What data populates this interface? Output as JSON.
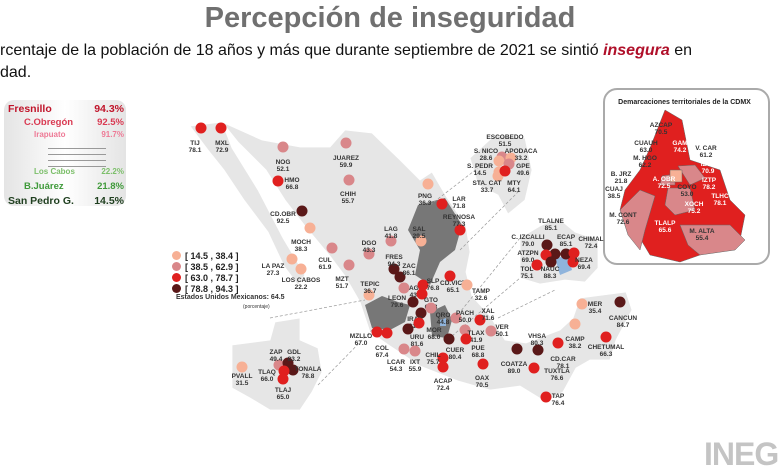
{
  "title": "Percepción de inseguridad",
  "subtitle": {
    "line1_pre": "rcentaje de la población de 18 años y más que durante septiembre de 2021 se sintió ",
    "line1_em": "insegura",
    "line1_post": " en",
    "line2": "dad."
  },
  "ranking": [
    {
      "name": "Fresnillo",
      "value": "94.3%",
      "color": "#c0142a"
    },
    {
      "name": "C.Obregón",
      "value": "92.5%",
      "color": "#d93a52"
    },
    {
      "name": "Irapuato",
      "value": "91.7%",
      "color": "#ee7a96"
    },
    {
      "name": "Los Cabos",
      "value": "22.2%",
      "color": "#7cbf6a"
    },
    {
      "name": "B.Juárez",
      "value": "21.8%",
      "color": "#3f9a3a"
    },
    {
      "name": "San Pedro G.",
      "value": "14.5%",
      "color": "#1f3f1f"
    }
  ],
  "legend": {
    "ranges": [
      "[ 14.5 , 38.4 ]",
      "[ 38.5 , 62.9 ]",
      "[ 63.0 , 78.7 ]",
      "[ 78.8 , 94.3 ]"
    ],
    "colors": [
      "#f7b095",
      "#d9878a",
      "#e0201f",
      "#5a1818"
    ]
  },
  "national": {
    "label": "Estados Unidos Mexicanos:",
    "value": "64.5",
    "unit": "(porcentaje)"
  },
  "cities": [
    {
      "name": "TIJ",
      "value": "78.1"
    },
    {
      "name": "MXL",
      "value": "72.9"
    },
    {
      "name": "NOG",
      "value": "52.1"
    },
    {
      "name": "JUAREZ",
      "value": "59.9"
    },
    {
      "name": "HMO",
      "value": "66.8"
    },
    {
      "name": "CHIH",
      "value": "55.7"
    },
    {
      "name": "CD.OBR",
      "value": "92.5"
    },
    {
      "name": "PNG",
      "value": "36.3"
    },
    {
      "name": "LAR",
      "value": "71.8"
    },
    {
      "name": "REYNOSA",
      "value": "77.3"
    },
    {
      "name": "MOCH",
      "value": "38.3"
    },
    {
      "name": "LAG",
      "value": "41.8"
    },
    {
      "name": "SAL",
      "value": "29.5"
    },
    {
      "name": "DGO",
      "value": "43.3"
    },
    {
      "name": "CUL",
      "value": "61.9"
    },
    {
      "name": "LA PAZ",
      "value": "27.3"
    },
    {
      "name": "LOS CABOS",
      "value": "22.2"
    },
    {
      "name": "MZT",
      "value": "51.7"
    },
    {
      "name": "FRES",
      "value": "94.3"
    },
    {
      "name": "ZAC",
      "value": "86.1"
    },
    {
      "name": "TEPIC",
      "value": "36.7"
    },
    {
      "name": "AGS",
      "value": "43.5"
    },
    {
      "name": "SLP",
      "value": "76.8"
    },
    {
      "name": "CD.VICT",
      "value": "65.1"
    },
    {
      "name": "TAMP",
      "value": "32.6"
    },
    {
      "name": "LEON",
      "value": "79.6"
    },
    {
      "name": "GTO",
      "value": "67.8"
    },
    {
      "name": "IRAP",
      "value": "91.7"
    },
    {
      "name": "QRO",
      "value": "44.8"
    },
    {
      "name": "MOR",
      "value": "68.0"
    },
    {
      "name": "PACH",
      "value": "50.0"
    },
    {
      "name": "XAL",
      "value": "71.6"
    },
    {
      "name": "VER",
      "value": "50.1"
    },
    {
      "name": "TLAX",
      "value": "41.9"
    },
    {
      "name": "PUE",
      "value": "68.8"
    },
    {
      "name": "URU",
      "value": "81.6"
    },
    {
      "name": "CUER",
      "value": "80.4"
    },
    {
      "name": "MZLLO",
      "value": "67.0"
    },
    {
      "name": "COL",
      "value": "67.4"
    },
    {
      "name": "LCAR",
      "value": "54.3"
    },
    {
      "name": "IXT",
      "value": "55.9"
    },
    {
      "name": "CHIL",
      "value": "75.7"
    },
    {
      "name": "ACAP",
      "value": "72.4"
    },
    {
      "name": "OAX",
      "value": "70.5"
    },
    {
      "name": "COATZA",
      "value": "89.0"
    },
    {
      "name": "VHSA",
      "value": "80.3"
    },
    {
      "name": "CD.CAR",
      "value": "78.1"
    },
    {
      "name": "TUXTLA",
      "value": "76.6"
    },
    {
      "name": "TAP",
      "value": "76.4"
    },
    {
      "name": "CAMP",
      "value": "38.2"
    },
    {
      "name": "MER",
      "value": "35.4"
    },
    {
      "name": "CANCUN",
      "value": "84.7"
    },
    {
      "name": "CHETUMAL",
      "value": "66.3"
    },
    {
      "name": "ZAP",
      "value": "49.4"
    },
    {
      "name": "GDL",
      "value": "83.2"
    },
    {
      "name": "TONALA",
      "value": "78.8"
    },
    {
      "name": "TLAQ",
      "value": "66.0"
    },
    {
      "name": "TLAJ",
      "value": "65.0"
    },
    {
      "name": "PVALL",
      "value": "31.5"
    },
    {
      "name": "ESCOBEDO",
      "value": "51.5"
    },
    {
      "name": "S. NICO",
      "value": "28.6"
    },
    {
      "name": "APODACA",
      "value": "33.2"
    },
    {
      "name": "GPE",
      "value": "49.6"
    },
    {
      "name": "S. PEDR",
      "value": "14.5"
    },
    {
      "name": "STA. CAT",
      "value": "33.7"
    },
    {
      "name": "MTY",
      "value": "64.1"
    },
    {
      "name": "TLALNE",
      "value": "85.1"
    },
    {
      "name": "C. IZCALLI",
      "value": "79.0"
    },
    {
      "name": "ECAP",
      "value": "85.1"
    },
    {
      "name": "CHIMAL",
      "value": "72.4"
    },
    {
      "name": "ATZPN",
      "value": "69.0"
    },
    {
      "name": "NEZA",
      "value": "69.4"
    },
    {
      "name": "TOL",
      "value": "75.1"
    },
    {
      "name": "NAUC",
      "value": "88.3"
    }
  ],
  "cdmx": {
    "title": "Demarcaciones territoriales de la CDMX",
    "districts": [
      {
        "name": "AZCAP",
        "value": "70.5"
      },
      {
        "name": "GAM",
        "value": "74.2"
      },
      {
        "name": "CUAUH",
        "value": "63.0"
      },
      {
        "name": "V. CAR",
        "value": "61.2"
      },
      {
        "name": "M. HGO",
        "value": "62.2"
      },
      {
        "name": "IZTC",
        "value": "70.9"
      },
      {
        "name": "B. JRZ",
        "value": "21.8"
      },
      {
        "name": "A. OBR",
        "value": "72.5"
      },
      {
        "name": "COYO",
        "value": "53.0"
      },
      {
        "name": "IZTP",
        "value": "78.2"
      },
      {
        "name": "CUAJ",
        "value": "38.5"
      },
      {
        "name": "TLHC",
        "value": "78.1"
      },
      {
        "name": "XOCH",
        "value": "75.2"
      },
      {
        "name": "M. CONT",
        "value": "72.6"
      },
      {
        "name": "TLALP",
        "value": "65.6"
      },
      {
        "name": "M. ALTA",
        "value": "55.4"
      }
    ]
  },
  "logo": "INEGI"
}
